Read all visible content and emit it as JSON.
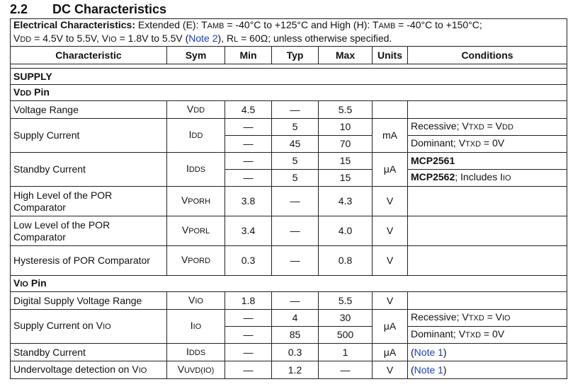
{
  "heading": {
    "number": "2.2",
    "title": "DC Characteristics"
  },
  "intro": {
    "label": "Electrical Characteristics:",
    "text1": " Extended (E): T",
    "amb1": "AMB",
    "text2": " = -40°C to +125°C and High (H): T",
    "amb2": "AMB",
    "text3": " = -40°C to +150°C;",
    "v1": "V",
    "dd": "DD",
    "text4": " = 4.5V to 5.5V, V",
    "io": "IO",
    "text5": " = 1.8V to 5.5V (",
    "note": "Note 2",
    "text6": "), R",
    "l": "L",
    "text7": " = 60Ω; unless otherwise specified."
  },
  "columns": [
    "Characteristic",
    "Sym",
    "Min",
    "Typ",
    "Max",
    "Units",
    "Conditions"
  ],
  "supply": {
    "title": "SUPPLY",
    "vdd_pin": {
      "main": "V",
      "sub": "DD",
      "rest": " Pin"
    },
    "rows": {
      "voltage_range": {
        "char": "Voltage Range",
        "sym": "V",
        "sym_sub": "DD",
        "min": "4.5",
        "typ": "—",
        "max": "5.5",
        "units": ""
      },
      "supply_current": {
        "char": "Supply Current",
        "sym": "I",
        "sym_sub": "DD",
        "units": "mA",
        "r1": {
          "min": "—",
          "typ": "5",
          "max": "10",
          "cond1": "Recessive; V",
          "cond_sub": "TXD",
          "cond2": " = V",
          "cond_sub2": "DD"
        },
        "r2": {
          "min": "—",
          "typ": "45",
          "max": "70",
          "cond1": "Dominant; V",
          "cond_sub": "TXD",
          "cond2": " = 0V"
        }
      },
      "standby_current": {
        "char": "Standby Current",
        "sym": "I",
        "sym_sub": "DDS",
        "units": "μA",
        "r1": {
          "min": "—",
          "typ": "5",
          "max": "15",
          "cond": "MCP2561"
        },
        "r2": {
          "min": "—",
          "typ": "5",
          "max": "15",
          "cond_bold": "MCP2562",
          "cond_rest": "; Includes I",
          "cond_sub": "IO"
        }
      },
      "por_high": {
        "char": "High Level of the POR Comparator",
        "sym": "V",
        "sym_sub": "PORH",
        "min": "3.8",
        "typ": "—",
        "max": "4.3",
        "units": "V"
      },
      "por_low": {
        "char": "Low Level of the POR Comparator",
        "sym": "V",
        "sym_sub": "PORL",
        "min": "3.4",
        "typ": "—",
        "max": "4.0",
        "units": "V"
      },
      "por_hyst": {
        "char": "Hysteresis of POR Comparator",
        "sym": "V",
        "sym_sub": "PORD",
        "min": "0.3",
        "typ": "—",
        "max": "0.8",
        "units": "V"
      }
    }
  },
  "vio": {
    "pin": {
      "main": "V",
      "sub": "IO",
      "rest": " Pin"
    },
    "rows": {
      "digital_voltage": {
        "char": "Digital Supply Voltage Range",
        "sym": "V",
        "sym_sub": "IO",
        "min": "1.8",
        "typ": "—",
        "max": "5.5",
        "units": "V"
      },
      "supply_current": {
        "char": "Supply Current on V",
        "char_sub": "IO",
        "sym": "I",
        "sym_sub": "IO",
        "units": "μA",
        "r1": {
          "min": "—",
          "typ": "4",
          "max": "30",
          "cond1": "Recessive; V",
          "cond_sub": "TXD",
          "cond2": " = V",
          "cond_sub2": "IO"
        },
        "r2": {
          "min": "—",
          "typ": "85",
          "max": "500",
          "cond1": "Dominant; V",
          "cond_sub": "TXD",
          "cond2": " = 0V"
        }
      },
      "standby_current": {
        "char": "Standby Current",
        "sym": "I",
        "sym_sub": "DDS",
        "min": "—",
        "typ": "0.3",
        "max": "1",
        "units": "μA",
        "cond_open": "(",
        "cond_note": "Note 1",
        "cond_close": ")"
      },
      "undervoltage": {
        "char": "Undervoltage detection on V",
        "char_sub": "IO",
        "sym": "V",
        "sym_sub": "UVD(IO)",
        "min": "—",
        "typ": "1.2",
        "max": "—",
        "units": "V",
        "cond_open": "(",
        "cond_note": "Note 1",
        "cond_close": ")"
      }
    }
  },
  "colors": {
    "link": "#1a3fbf",
    "border": "#222222"
  }
}
